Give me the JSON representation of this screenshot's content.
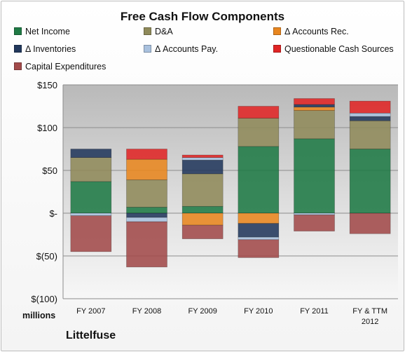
{
  "chart_data": {
    "type": "bar",
    "stacked": true,
    "title": "Free Cash Flow Components",
    "ylabel": "",
    "units_label": "millions",
    "company": "Littelfuse",
    "categories": [
      "FY 2007",
      "FY 2008",
      "FY 2009",
      "FY 2010",
      "FY 2011",
      "FY & TTM 2012"
    ],
    "ylim": [
      -100,
      150
    ],
    "yticks": [
      150,
      100,
      50,
      0,
      -50,
      -100
    ],
    "ytick_labels": [
      "$150",
      "$100",
      "$50",
      "$-",
      "$(50)",
      "$(100)"
    ],
    "grid": true,
    "legend_position": "top",
    "series": [
      {
        "name": "Net Income",
        "color": "#1f7a45",
        "values": [
          37,
          7,
          8,
          78,
          87,
          75
        ]
      },
      {
        "name": "D&A",
        "color": "#8f8a5a",
        "values": [
          28,
          32,
          38,
          33,
          33,
          33
        ]
      },
      {
        "name": "Δ Accounts Rec.",
        "color": "#e8861f",
        "values": [
          0,
          24,
          -14,
          -12,
          4,
          0
        ]
      },
      {
        "name": "Δ Inventories",
        "color": "#22385c",
        "values": [
          10,
          -5,
          16,
          -16,
          3,
          5
        ]
      },
      {
        "name": "Δ Accounts Pay.",
        "color": "#a9c1de",
        "values": [
          -3,
          -5,
          3,
          -3,
          -2,
          4
        ]
      },
      {
        "name": "Questionable Cash Sources",
        "color": "#e02525",
        "values": [
          0,
          12,
          3,
          14,
          7,
          14
        ]
      },
      {
        "name": "Capital Expenditures",
        "color": "#a24a4a",
        "values": [
          -42,
          -53,
          -16,
          -21,
          -19,
          -24
        ]
      }
    ]
  }
}
